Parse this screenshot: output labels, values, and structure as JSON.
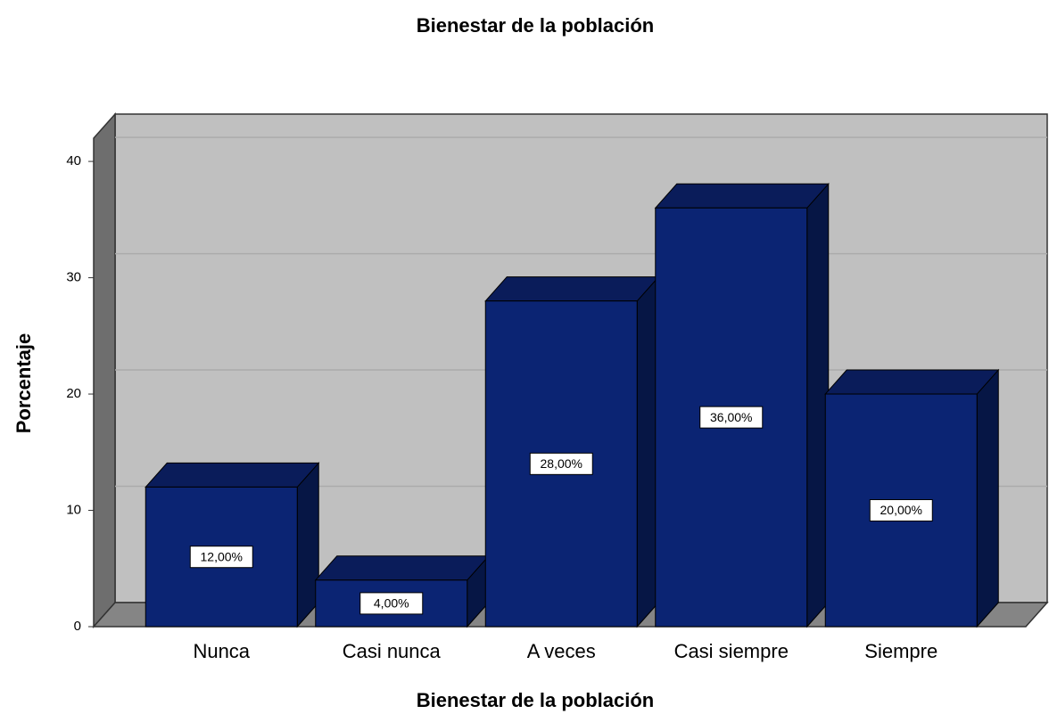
{
  "chart_data": {
    "type": "bar3d",
    "title": "Bienestar de la población",
    "x_label": "Bienestar de la población",
    "y_label": "Porcentaje",
    "categories": [
      "Nunca",
      "Casi nunca",
      "A veces",
      "Casi siempre",
      "Siempre"
    ],
    "values": [
      12,
      4,
      28,
      36,
      20
    ],
    "value_labels": [
      "12,00%",
      "4,00%",
      "28,00%",
      "36,00%",
      "20,00%"
    ],
    "color": "#0b2473",
    "ylim": [
      0,
      42
    ],
    "yticks": [
      0,
      10,
      20,
      30,
      40
    ],
    "grid": true
  }
}
